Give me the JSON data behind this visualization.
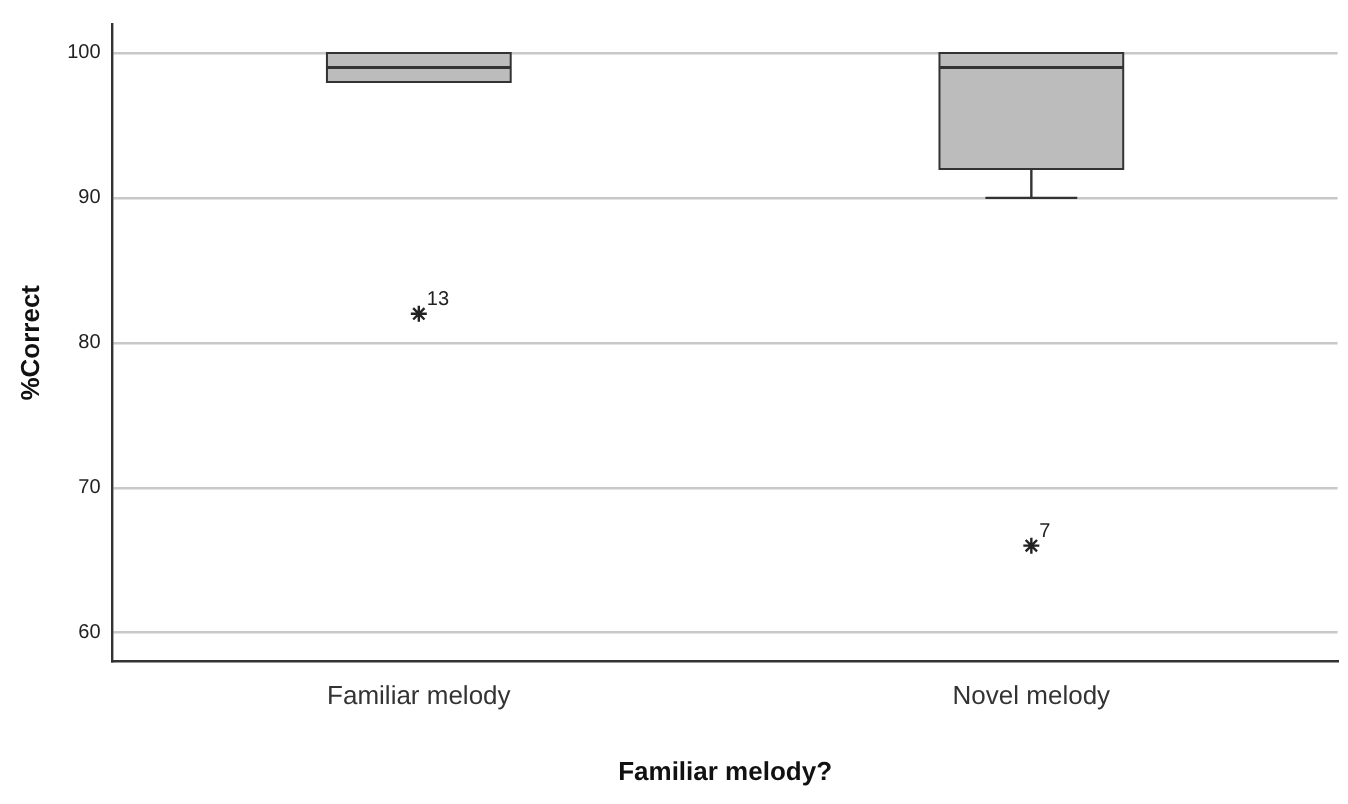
{
  "chart_data": {
    "type": "box",
    "xlabel": "Familiar melody?",
    "ylabel": "%Correct",
    "categories": [
      "Familiar melody",
      "Novel melody"
    ],
    "boxes": [
      {
        "low": 98,
        "q1": 98,
        "median": 99,
        "q3": 100,
        "high": 100,
        "outliers": [
          82
        ]
      },
      {
        "low": 90,
        "q1": 92,
        "median": 99,
        "q3": 100,
        "high": 100,
        "outliers": [
          66
        ]
      }
    ],
    "color": "#bcbcbc",
    "ylim": [
      58,
      102
    ],
    "yticks": [
      60,
      70,
      80,
      90,
      100
    ],
    "grid": "y",
    "legend": false,
    "marker": "star",
    "annotations": [
      "13",
      "7"
    ]
  }
}
